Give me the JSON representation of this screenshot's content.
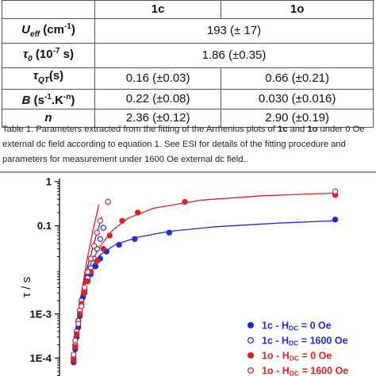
{
  "table": {
    "header": [
      "",
      "1c",
      "1o"
    ],
    "rows": [
      {
        "param": "U",
        "sub": "eff",
        "unit": " (cm",
        "sup": "-1",
        "unit_end": ")",
        "merged": true,
        "value": "193 (± 17)"
      },
      {
        "param": "τ",
        "sub": "0",
        "unit": " (10",
        "sup": "-7",
        "unit_end": " s)",
        "merged": true,
        "value": "1.86 (±0.35)"
      },
      {
        "param": "τ",
        "sub": "QT",
        "unit": "(s)",
        "sup": "",
        "unit_end": "",
        "merged": false,
        "values": [
          "0.16 (±0.03)",
          "0.66 (±0.21)"
        ]
      },
      {
        "param": "B",
        "sub": "",
        "unit": " (s",
        "sup": "-1",
        "unit_mid": ".K",
        "sup2": "-n",
        "unit_end": ")",
        "merged": false,
        "values": [
          "0.22 (±0.08)",
          "0.030 (±0.016)"
        ]
      },
      {
        "param": "n",
        "sub": "",
        "unit": "",
        "sup": "",
        "unit_end": "",
        "merged": false,
        "values": [
          "2.36 (±0.12)",
          "2.90 (±0.19)"
        ]
      }
    ]
  },
  "caption": {
    "t1": "Table 1. Parameters extracted from the fitting of the Arrhenius plots of ",
    "b1": "1c",
    "t2": " and ",
    "b2": "1o",
    "t3": " under 0 Oe external dc field according to equation 1. See ESI for details of the fitting procedure and parameters for measurement under 1600 Oe external dc field.."
  },
  "chart_data": {
    "type": "scatter",
    "ylabel": "τ / s",
    "yscale": "log",
    "yticks": [
      "1",
      "0.1",
      "1E-3",
      "1E-4"
    ],
    "ytick_values": [
      1,
      0.1,
      0.001,
      0.0001
    ],
    "colors": {
      "blue": "#1f2bd6",
      "red": "#e02020"
    },
    "series": [
      {
        "name": "1c - H_DC = 0 Oe",
        "legend_main": "1c - H",
        "legend_sub": "DC",
        "legend_end": " = 0 Oe",
        "color": "#1f2bd6",
        "filled": true,
        "points": [
          [
            0.045,
            8e-05
          ],
          [
            0.05,
            0.00016
          ],
          [
            0.055,
            0.0003
          ],
          [
            0.06,
            0.0005
          ],
          [
            0.065,
            0.0009
          ],
          [
            0.07,
            0.0015
          ],
          [
            0.075,
            0.0024
          ],
          [
            0.08,
            0.0035
          ],
          [
            0.09,
            0.0055
          ],
          [
            0.1,
            0.008
          ],
          [
            0.115,
            0.012
          ],
          [
            0.13,
            0.018
          ],
          [
            0.15,
            0.026
          ],
          [
            0.19,
            0.037
          ],
          [
            0.24,
            0.05
          ],
          [
            0.35,
            0.07
          ],
          [
            0.88,
            0.138
          ]
        ]
      },
      {
        "name": "1c - H_DC = 1600 Oe",
        "legend_main": "1c - H",
        "legend_sub": "DC",
        "legend_end": " = 1600 Oe",
        "color": "#1f2bd6",
        "filled": false,
        "points": [
          [
            0.045,
            0.0001
          ],
          [
            0.05,
            0.0002
          ],
          [
            0.055,
            0.0004
          ],
          [
            0.06,
            0.0007
          ],
          [
            0.065,
            0.0012
          ],
          [
            0.07,
            0.002
          ],
          [
            0.08,
            0.0035
          ],
          [
            0.09,
            0.0065
          ],
          [
            0.1,
            0.011
          ],
          [
            0.11,
            0.018
          ],
          [
            0.12,
            0.03
          ],
          [
            0.13,
            0.05
          ],
          [
            0.14,
            0.09
          ]
        ]
      },
      {
        "name": "1o - H_DC = 0 Oe",
        "legend_main": "1o - H",
        "legend_sub": "DC",
        "legend_end": " = 0 Oe",
        "color": "#e02020",
        "filled": true,
        "points": [
          [
            0.045,
            9e-05
          ],
          [
            0.05,
            0.00018
          ],
          [
            0.055,
            0.00035
          ],
          [
            0.06,
            0.0006
          ],
          [
            0.065,
            0.001
          ],
          [
            0.07,
            0.0017
          ],
          [
            0.08,
            0.003
          ],
          [
            0.09,
            0.0055
          ],
          [
            0.1,
            0.009
          ],
          [
            0.12,
            0.016
          ],
          [
            0.14,
            0.03
          ],
          [
            0.16,
            0.06
          ],
          [
            0.2,
            0.13
          ],
          [
            0.25,
            0.2
          ],
          [
            0.4,
            0.35
          ],
          [
            0.88,
            0.5
          ]
        ]
      },
      {
        "name": "1o - H_DC = 1600 Oe",
        "legend_main": "1o - H",
        "legend_sub": "DC",
        "legend_end": " = 1600 Oe",
        "color": "#e02020",
        "filled": false,
        "points": [
          [
            0.045,
            0.00012
          ],
          [
            0.05,
            0.00025
          ],
          [
            0.06,
            0.0006
          ],
          [
            0.07,
            0.0015
          ],
          [
            0.08,
            0.004
          ],
          [
            0.09,
            0.009
          ],
          [
            0.1,
            0.018
          ],
          [
            0.11,
            0.035
          ],
          [
            0.12,
            0.07
          ],
          [
            0.13,
            0.13
          ],
          [
            0.155,
            0.35
          ],
          [
            0.88,
            0.6
          ]
        ]
      }
    ],
    "fits": [
      {
        "color": "#1f2bd6",
        "points": [
          [
            0.05,
            0.0001
          ],
          [
            0.055,
            0.00035
          ],
          [
            0.06,
            0.0008
          ],
          [
            0.07,
            0.002
          ],
          [
            0.08,
            0.0045
          ],
          [
            0.1,
            0.011
          ],
          [
            0.13,
            0.022
          ],
          [
            0.18,
            0.038
          ],
          [
            0.25,
            0.055
          ],
          [
            0.35,
            0.075
          ],
          [
            0.5,
            0.095
          ],
          [
            0.7,
            0.115
          ],
          [
            0.88,
            0.13
          ]
        ]
      },
      {
        "color": "#1f2bd6",
        "points": [
          [
            0.05,
            0.00012
          ],
          [
            0.06,
            0.0008
          ],
          [
            0.07,
            0.0025
          ],
          [
            0.08,
            0.006
          ],
          [
            0.09,
            0.012
          ],
          [
            0.1,
            0.022
          ],
          [
            0.11,
            0.04
          ],
          [
            0.12,
            0.07
          ],
          [
            0.13,
            0.12
          ],
          [
            0.135,
            0.16
          ]
        ]
      },
      {
        "color": "#e02020",
        "points": [
          [
            0.05,
            0.0001
          ],
          [
            0.055,
            0.0004
          ],
          [
            0.06,
            0.0009
          ],
          [
            0.07,
            0.0025
          ],
          [
            0.08,
            0.0055
          ],
          [
            0.1,
            0.014
          ],
          [
            0.13,
            0.035
          ],
          [
            0.17,
            0.08
          ],
          [
            0.22,
            0.15
          ],
          [
            0.3,
            0.25
          ],
          [
            0.45,
            0.38
          ],
          [
            0.65,
            0.48
          ],
          [
            0.88,
            0.55
          ]
        ]
      },
      {
        "color": "#e02020",
        "points": [
          [
            0.05,
            0.00012
          ],
          [
            0.06,
            0.0009
          ],
          [
            0.07,
            0.003
          ],
          [
            0.08,
            0.008
          ],
          [
            0.09,
            0.02
          ],
          [
            0.1,
            0.045
          ],
          [
            0.11,
            0.1
          ],
          [
            0.12,
            0.2
          ],
          [
            0.125,
            0.3
          ]
        ]
      }
    ]
  }
}
